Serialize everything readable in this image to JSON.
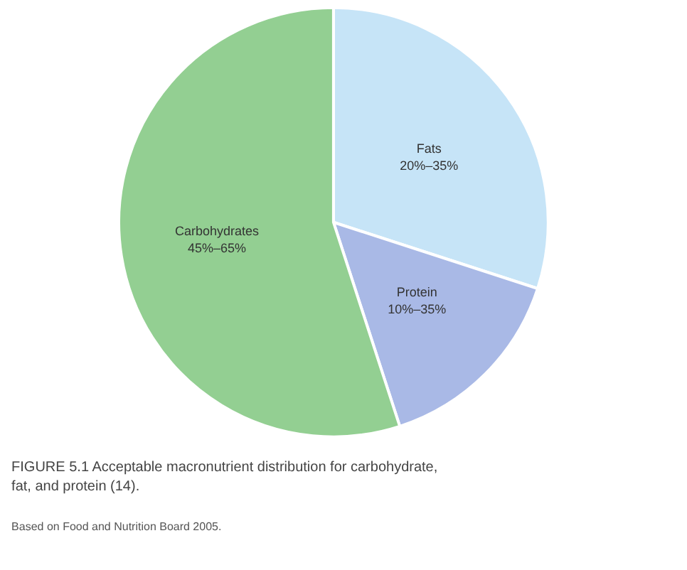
{
  "chart_data": {
    "type": "pie",
    "title": "FIGURE 5.1 Acceptable macronutrient distribution for carbohydrate, fat, and protein (14).",
    "categories": [
      "Fats 20%–35%",
      "Protein 10%–35%",
      "Carbohydrates 45%–65%"
    ],
    "values": [
      30,
      15,
      55
    ],
    "colors": [
      "#c6e4f7",
      "#a9b9e6",
      "#93cf92"
    ],
    "annotations": [
      "Based on Food and Nutrition Board 2005."
    ]
  }
}
